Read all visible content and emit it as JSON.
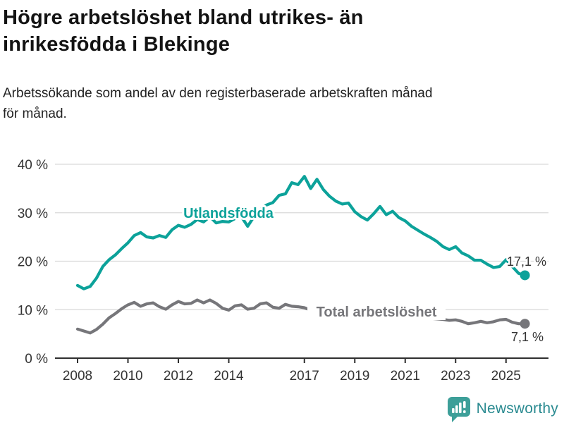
{
  "header": {
    "title_lines": [
      "Högre arbetslöshet bland utrikes- än",
      "inrikesfödda i Blekinge"
    ],
    "subtitle_lines": [
      "Arbetssökande som andel av den registerbaserade arbetskraften månad",
      "för månad."
    ]
  },
  "footer": {
    "brand_name": "Newsworthy",
    "logo_icon": "bar-chart-speech-bubble-icon"
  },
  "colors": {
    "series_foreign_born": "#0ca29a",
    "series_total": "#76767a",
    "grid": "#d9d9d9",
    "axis": "#2f2f2f",
    "tick_text": "#333333",
    "value_label": "#333333",
    "logo_icon": "#3d9f99",
    "logo_text": "#2b8b91",
    "background": "#ffffff"
  },
  "chart_data": {
    "type": "line",
    "title": "Högre arbetslöshet bland utrikes- än inrikesfödda i Blekinge",
    "subtitle": "Arbetssökande som andel av den registerbaserade arbetskraften månad för månad.",
    "xlabel": "",
    "ylabel": "",
    "grid": true,
    "legend_position": "inline-labels",
    "x_axis": {
      "tick_values": [
        2008,
        2010,
        2012,
        2014,
        2017,
        2019,
        2021,
        2023,
        2025
      ],
      "tick_labels": [
        "2008",
        "2010",
        "2012",
        "2014",
        "2017",
        "2019",
        "2021",
        "2023",
        "2025"
      ],
      "range": [
        2007.1,
        2026.7
      ]
    },
    "y_axis": {
      "tick_values": [
        0,
        10,
        20,
        30,
        40
      ],
      "tick_labels": [
        "0 %",
        "10 %",
        "20 %",
        "30 %",
        "40 %"
      ],
      "range": [
        0,
        40
      ]
    },
    "x": [
      2008.0,
      2008.25,
      2008.5,
      2008.75,
      2009.0,
      2009.25,
      2009.5,
      2009.75,
      2010.0,
      2010.25,
      2010.5,
      2010.75,
      2011.0,
      2011.25,
      2011.5,
      2011.75,
      2012.0,
      2012.25,
      2012.5,
      2012.75,
      2013.0,
      2013.25,
      2013.5,
      2013.75,
      2014.0,
      2014.25,
      2014.5,
      2014.75,
      2015.0,
      2015.25,
      2015.5,
      2015.75,
      2016.0,
      2016.25,
      2016.5,
      2016.75,
      2017.0,
      2017.25,
      2017.5,
      2017.75,
      2018.0,
      2018.25,
      2018.5,
      2018.75,
      2019.0,
      2019.25,
      2019.5,
      2019.75,
      2020.0,
      2020.25,
      2020.5,
      2020.75,
      2021.0,
      2021.25,
      2021.5,
      2021.75,
      2022.0,
      2022.25,
      2022.5,
      2022.75,
      2023.0,
      2023.25,
      2023.5,
      2023.75,
      2024.0,
      2024.25,
      2024.5,
      2024.75,
      2025.0,
      2025.25,
      2025.5,
      2025.75
    ],
    "series": [
      {
        "name": "Utlandsfödda",
        "color": "#0ca29a",
        "end_label": "17,1 %",
        "end_value": 17.1,
        "values": [
          15.0,
          14.3,
          14.8,
          16.5,
          18.9,
          20.3,
          21.3,
          22.6,
          23.8,
          25.3,
          25.9,
          25.0,
          24.8,
          25.3,
          24.9,
          26.5,
          27.4,
          27.0,
          27.6,
          28.6,
          28.1,
          29.2,
          27.9,
          28.2,
          28.1,
          28.8,
          29.2,
          27.2,
          29.2,
          30.6,
          31.6,
          32.1,
          33.6,
          33.9,
          36.2,
          35.8,
          37.5,
          35.0,
          36.9,
          34.8,
          33.4,
          32.4,
          31.8,
          32.0,
          30.2,
          29.2,
          28.5,
          29.8,
          31.3,
          29.6,
          30.3,
          29.0,
          28.3,
          27.2,
          26.4,
          25.6,
          24.9,
          24.1,
          23.0,
          22.4,
          23.0,
          21.7,
          21.1,
          20.2,
          20.2,
          19.4,
          18.7,
          18.9,
          20.3,
          18.9,
          17.5,
          17.1
        ]
      },
      {
        "name": "Total arbetslöshet",
        "color": "#76767a",
        "end_label": "7,1 %",
        "end_value": 7.1,
        "values": [
          6.0,
          5.6,
          5.2,
          5.9,
          7.0,
          8.3,
          9.2,
          10.2,
          11.0,
          11.5,
          10.7,
          11.2,
          11.4,
          10.6,
          10.1,
          11.0,
          11.7,
          11.2,
          11.3,
          12.0,
          11.4,
          12.0,
          11.3,
          10.3,
          9.9,
          10.8,
          11.0,
          10.1,
          10.3,
          11.2,
          11.4,
          10.5,
          10.3,
          11.1,
          10.7,
          10.6,
          10.4,
          9.9,
          9.7,
          9.5,
          9.3,
          9.1,
          8.9,
          8.8,
          8.7,
          8.6,
          8.6,
          8.7,
          8.9,
          9.6,
          9.8,
          9.5,
          9.2,
          8.9,
          8.6,
          8.4,
          8.2,
          8.1,
          8.0,
          7.8,
          7.9,
          7.6,
          7.1,
          7.3,
          7.6,
          7.3,
          7.5,
          7.9,
          8.0,
          7.4,
          7.1,
          7.1
        ]
      }
    ]
  }
}
